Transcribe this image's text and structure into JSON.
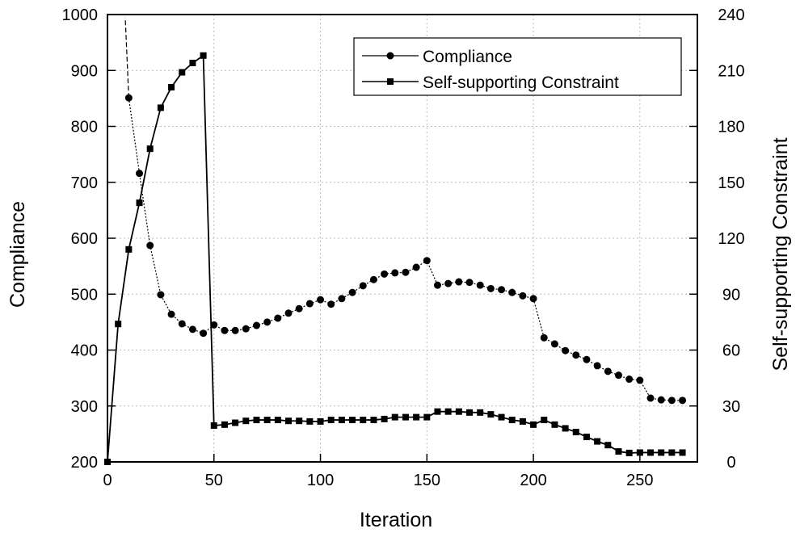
{
  "chart_data": {
    "type": "line",
    "xlabel": "Iteration",
    "ylabel": "Compliance",
    "y2label": "Self-supporting Constraint",
    "xlim": [
      0,
      277
    ],
    "ylim": [
      200,
      1000
    ],
    "y2lim": [
      0,
      240
    ],
    "xticks": [
      0,
      50,
      100,
      150,
      200,
      250
    ],
    "yticks": [
      200,
      300,
      400,
      500,
      600,
      700,
      800,
      900,
      1000
    ],
    "y2ticks": [
      0,
      30,
      60,
      90,
      120,
      150,
      180,
      210,
      240
    ],
    "grid": true,
    "legend_position": "top-right",
    "series": [
      {
        "name": "Compliance",
        "axis": "left",
        "marker": "circle",
        "line": "dotted",
        "x": [
          10,
          15,
          20,
          25,
          30,
          35,
          40,
          45,
          50,
          55,
          60,
          65,
          70,
          75,
          80,
          85,
          90,
          95,
          100,
          105,
          110,
          115,
          120,
          125,
          130,
          135,
          140,
          145,
          150,
          155,
          160,
          165,
          170,
          175,
          180,
          185,
          190,
          195,
          200,
          205,
          210,
          215,
          220,
          225,
          230,
          235,
          240,
          245,
          250,
          255,
          260,
          265,
          270
        ],
        "y": [
          851,
          716,
          587,
          499,
          464,
          447,
          437,
          430,
          445,
          435,
          435,
          438,
          444,
          450,
          457,
          466,
          474,
          483,
          490,
          482,
          492,
          503,
          515,
          526,
          536,
          538,
          539,
          548,
          560,
          516,
          519,
          522,
          521,
          516,
          510,
          508,
          503,
          497,
          492,
          422,
          411,
          399,
          391,
          383,
          372,
          362,
          355,
          348,
          346,
          314,
          311,
          310,
          310
        ]
      },
      {
        "name": "Self-supporting Constraint",
        "axis": "right",
        "marker": "square",
        "line": "solid",
        "x": [
          0,
          5,
          10,
          15,
          20,
          25,
          30,
          35,
          40,
          45,
          50,
          55,
          60,
          65,
          70,
          75,
          80,
          85,
          90,
          95,
          100,
          105,
          110,
          115,
          120,
          125,
          130,
          135,
          140,
          145,
          150,
          155,
          160,
          165,
          170,
          175,
          180,
          185,
          190,
          195,
          200,
          205,
          210,
          215,
          220,
          225,
          230,
          235,
          240,
          245,
          250,
          255,
          260,
          265,
          270
        ],
        "y": [
          0,
          74,
          114,
          139,
          168,
          190,
          201,
          209,
          214,
          218,
          19.5,
          20,
          21,
          22,
          22.5,
          22.5,
          22.5,
          22,
          22,
          21.7,
          21.7,
          22.5,
          22.5,
          22.5,
          22.5,
          22.5,
          23,
          24,
          24,
          24,
          24,
          27,
          27,
          27,
          26.5,
          26.5,
          25.5,
          24,
          22.5,
          21.7,
          20,
          22.5,
          20,
          18,
          16,
          13.4,
          11,
          9,
          5.6,
          4.8,
          5,
          5,
          5,
          5,
          5
        ]
      }
    ]
  }
}
